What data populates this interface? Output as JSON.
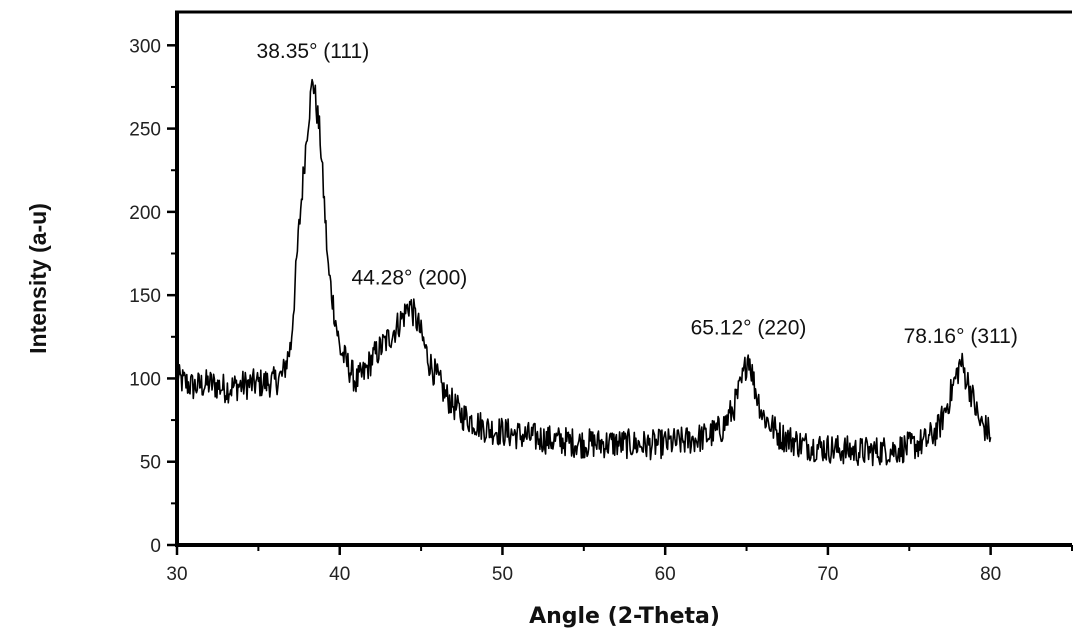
{
  "chart_data": {
    "type": "line",
    "title": "",
    "xlabel": "Angle (2-Theta)",
    "ylabel": "Intensity (a-u)",
    "xlim": [
      30,
      85
    ],
    "ylim": [
      0,
      320
    ],
    "x_ticks": [
      "30",
      "40",
      "50",
      "60",
      "70",
      "80"
    ],
    "y_ticks": [
      "0",
      "50",
      "100",
      "150",
      "200",
      "250",
      "300"
    ],
    "grid": false,
    "legend": "none",
    "line_color": "#000000",
    "series": [
      {
        "name": "",
        "x": [
          30,
          31,
          32,
          33,
          34,
          35,
          36,
          36.5,
          37,
          37.5,
          38,
          38.35,
          38.8,
          39.3,
          40,
          41,
          41.5,
          42,
          42.5,
          43,
          43.5,
          44,
          44.28,
          44.8,
          45.5,
          46.5,
          47.5,
          49,
          51,
          53,
          55,
          57,
          59,
          61,
          62.5,
          63.5,
          64.2,
          64.7,
          65.12,
          65.5,
          66,
          67,
          68.5,
          70,
          72,
          74,
          75,
          76,
          76.8,
          77.4,
          78.16,
          78.8,
          79.3,
          80
        ],
        "y": [
          100,
          95,
          97,
          94,
          96,
          97,
          98,
          102,
          120,
          190,
          250,
          280,
          245,
          165,
          118,
          98,
          103,
          112,
          118,
          124,
          131,
          139,
          145,
          133,
          110,
          90,
          78,
          70,
          66,
          63,
          61,
          61,
          60,
          62,
          65,
          70,
          82,
          97,
          115,
          95,
          78,
          66,
          60,
          58,
          56,
          57,
          59,
          62,
          70,
          86,
          110,
          92,
          74,
          67
        ]
      }
    ],
    "annotations": [
      {
        "x": 38.35,
        "y": 284,
        "text": "38.35° (111)"
      },
      {
        "x": 44.28,
        "y": 148,
        "text": "44.28° (200)"
      },
      {
        "x": 65.12,
        "y": 118,
        "text": "65.12° (220)"
      },
      {
        "x": 78.16,
        "y": 113,
        "text": "78.16° (311)"
      }
    ]
  }
}
